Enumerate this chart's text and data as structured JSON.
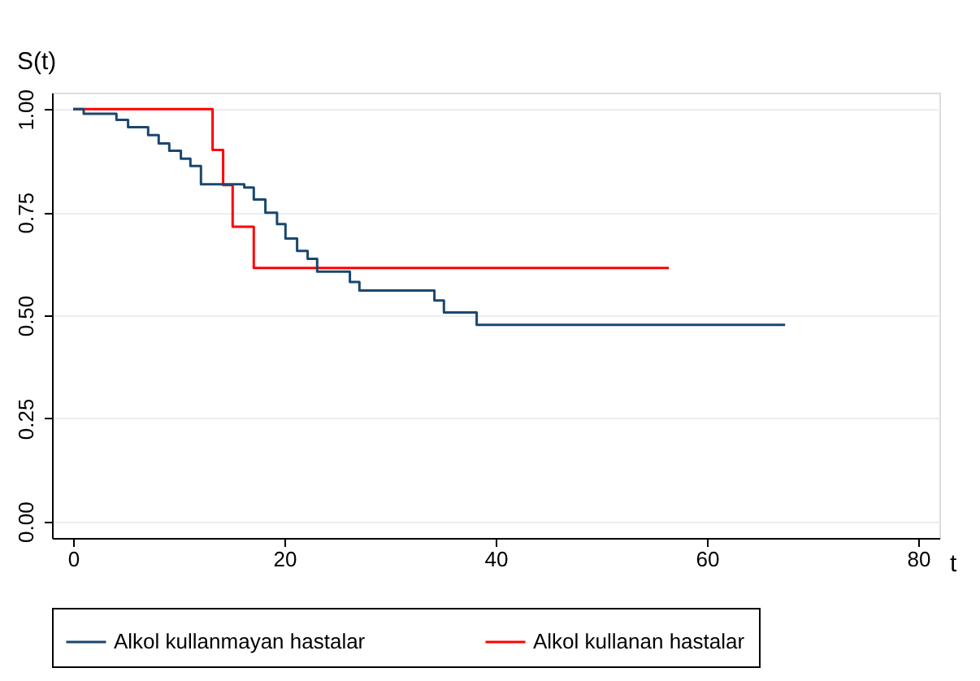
{
  "chart_data": {
    "type": "step",
    "xlabel": "t",
    "ylabel": "S(t)",
    "xlim": [
      -2,
      82
    ],
    "ylim": [
      -0.04,
      1.04
    ],
    "xticks": [
      0,
      20,
      40,
      60,
      80
    ],
    "yticks": [
      {
        "value": 0,
        "label": "0.00"
      },
      {
        "value": 0.25,
        "label": "0.25"
      },
      {
        "value": 0.5,
        "label": "0.50"
      },
      {
        "value": 0.75,
        "label": "0.75"
      },
      {
        "value": 1,
        "label": "1.00"
      }
    ],
    "grid": "y",
    "legend": "bottom",
    "line_style": "solid",
    "marker": "none",
    "series": [
      {
        "name": "Alkol kullanmayan hastalar",
        "color": "#1a476f",
        "x": [
          0,
          1,
          4.1,
          5.2,
          7.1,
          8.1,
          9.1,
          10.2,
          11.1,
          12.1,
          16.2,
          17.1,
          18.2,
          19.3,
          20.1,
          21.2,
          22.2,
          23.1,
          26.2,
          27.1,
          34.2,
          35.1,
          38.2,
          67.4
        ],
        "values": [
          1,
          0.989,
          0.974,
          0.956,
          0.937,
          0.917,
          0.899,
          0.88,
          0.862,
          0.818,
          0.81,
          0.781,
          0.749,
          0.721,
          0.686,
          0.656,
          0.637,
          0.606,
          0.581,
          0.56,
          0.536,
          0.507,
          0.477,
          0.477
        ]
      },
      {
        "name": "Alkol kullanan hastalar",
        "color": "#ff0000",
        "x": [
          0,
          13.2,
          14.2,
          15.1,
          17.1,
          56.4
        ],
        "values": [
          1,
          0.901,
          0.816,
          0.715,
          0.615,
          0.615
        ]
      }
    ]
  }
}
